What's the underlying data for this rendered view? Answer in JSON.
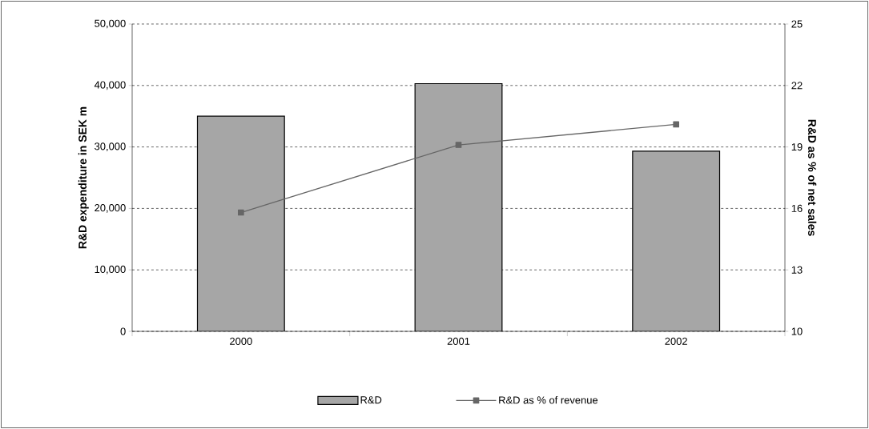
{
  "chart_data": {
    "type": "bar",
    "ylabel": "R&D expenditure in SEK m",
    "y2label": "R&D as % of net sales",
    "categories": [
      "2000",
      "2001",
      "2002"
    ],
    "series": [
      {
        "name": "R&D",
        "color": "#a6a6a6",
        "values": [
          35000,
          40300,
          29300
        ]
      },
      {
        "name": "R&D as % of revenue",
        "type": "line",
        "axis": "y2",
        "color": "#666666",
        "marker": "square",
        "line_style": "solid",
        "values": [
          15.8,
          19.1,
          20.1
        ]
      }
    ],
    "ylim": [
      0,
      50000
    ],
    "yticks": [
      {
        "value": 0,
        "label": "0"
      },
      {
        "value": 10000,
        "label": "10,000"
      },
      {
        "value": 20000,
        "label": "20,000"
      },
      {
        "value": 30000,
        "label": "30,000"
      },
      {
        "value": 40000,
        "label": "40,000"
      },
      {
        "value": 50000,
        "label": "50,000"
      }
    ],
    "y2lim": [
      10,
      25
    ],
    "y2ticks": [
      10,
      13,
      16,
      19,
      22,
      25
    ],
    "grid": "y",
    "legend": "bottom"
  }
}
